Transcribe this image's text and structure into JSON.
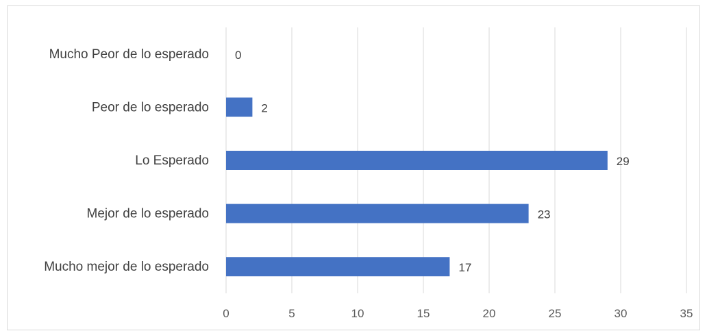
{
  "chart_data": {
    "type": "bar",
    "orientation": "horizontal",
    "categories": [
      "Mucho Peor de lo esperado",
      "Peor de lo esperado",
      "Lo Esperado",
      "Mejor de lo esperado",
      "Mucho mejor de lo esperado"
    ],
    "values": [
      0,
      2,
      29,
      23,
      17
    ],
    "xlim": [
      0,
      35
    ],
    "xticks": [
      "0",
      "5",
      "10",
      "15",
      "20",
      "25",
      "30",
      "35"
    ],
    "grid": true,
    "legend": "none",
    "bar_color": "#4472c4",
    "grid_color": "#d9d9d9"
  }
}
